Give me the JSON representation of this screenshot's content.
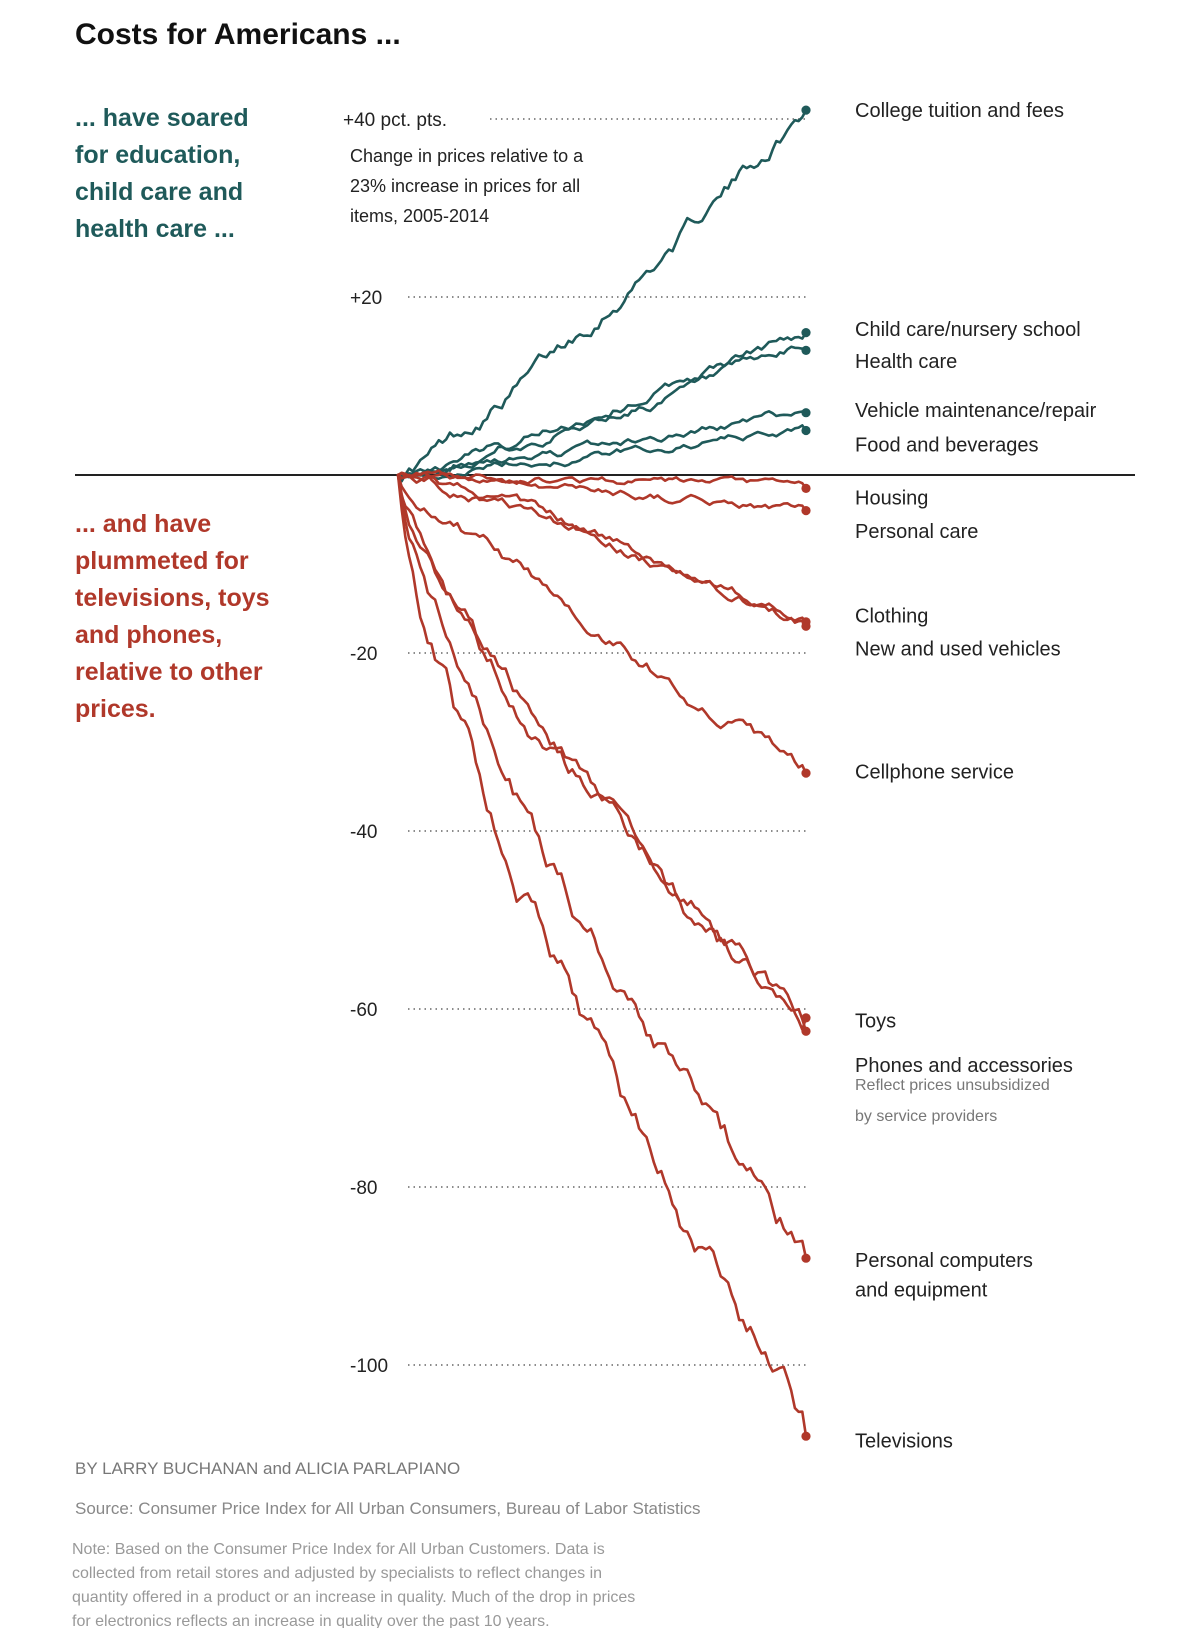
{
  "title": "Costs for Americans ...",
  "headline_up": [
    "... have soared",
    "for education,",
    "child care and",
    "health care ..."
  ],
  "headline_down": [
    "... and have",
    "plummeted for",
    "televisions, toys",
    "and phones,",
    "relative to other",
    "prices."
  ],
  "credit": "BY LARRY BUCHANAN and ALICIA PARLAPIANO",
  "source": "Source: Consumer Price Index for All Urban Consumers, Bureau of Labor Statistics",
  "note": [
    "Note: Based on the Consumer Price Index for All Urban Customers. Data is",
    "collected from retail stores and adjusted by specialists to reflect changes in",
    "quantity offered in a product or an increase in quality. Much of the drop in prices",
    "for electronics reflects an increase in quality over the past 10 years."
  ],
  "colors": {
    "up": "#1f5a5a",
    "down": "#b0382a"
  },
  "chart_data": {
    "type": "line",
    "title": "Costs for Americans ...",
    "subtitle": [
      "Change in prices relative to a",
      "23% increase in prices for all",
      "items, 2005-2014"
    ],
    "x": [
      2005,
      2014
    ],
    "xlabel": "",
    "ylabel": "pct. pts.",
    "ylim": [
      -108,
      41
    ],
    "y_ticks": [
      {
        "value": 40,
        "label": "+40 pct. pts."
      },
      {
        "value": 20,
        "label": "+20"
      },
      {
        "value": -20,
        "label": "-20"
      },
      {
        "value": -40,
        "label": "-40"
      },
      {
        "value": -60,
        "label": "-60"
      },
      {
        "value": -80,
        "label": "-80"
      },
      {
        "value": -100,
        "label": "-100"
      }
    ],
    "grid": true,
    "series": [
      {
        "name": "College tuition and fees",
        "end_value": 41,
        "group": "up"
      },
      {
        "name": "Child care/nursery school",
        "end_value": 16,
        "group": "up"
      },
      {
        "name": "Health care",
        "end_value": 14,
        "group": "up"
      },
      {
        "name": "Vehicle maintenance/repair",
        "end_value": 7,
        "group": "up"
      },
      {
        "name": "Food and beverages",
        "end_value": 5,
        "group": "up"
      },
      {
        "name": "Housing",
        "end_value": -1.5,
        "group": "down"
      },
      {
        "name": "Personal care",
        "end_value": -4,
        "group": "down"
      },
      {
        "name": "Clothing",
        "end_value": -16.5,
        "group": "down"
      },
      {
        "name": "New and used vehicles",
        "end_value": -17,
        "group": "down"
      },
      {
        "name": "Cellphone service",
        "end_value": -33.5,
        "group": "down"
      },
      {
        "name": "Toys",
        "end_value": -61,
        "group": "down"
      },
      {
        "name": "Phones and accessories",
        "end_value": -62.5,
        "group": "down",
        "note": [
          "Reflect prices unsubsidized",
          "by service providers"
        ]
      },
      {
        "name": "Personal computers and equipment",
        "end_value": -88,
        "group": "down"
      },
      {
        "name": "Televisions",
        "end_value": -108,
        "group": "down"
      }
    ],
    "direct_labels": [
      {
        "text": "College tuition and fees",
        "value": 41
      },
      {
        "text": "Child care/nursery school",
        "value": 16.4
      },
      {
        "text": "Health care",
        "value": 12.8
      },
      {
        "text": "Vehicle maintenance/repair",
        "value": 7.3
      },
      {
        "text": "Food and beverages",
        "value": 3.4
      },
      {
        "text": "Housing",
        "value": -2.5
      },
      {
        "text": "Personal care",
        "value": -6.3
      },
      {
        "text": "Clothing",
        "value": -15.8
      },
      {
        "text": "New and used vehicles",
        "value": -19.5
      },
      {
        "text": "Cellphone service",
        "value": -33.3
      },
      {
        "text": "Toys",
        "value": -61.3
      },
      {
        "text": "Phones and accessories",
        "value": -66.3
      },
      {
        "text": "Personal computers",
        "value": -88.2
      },
      {
        "text": "and equipment",
        "value": -91.5
      },
      {
        "text": "Televisions",
        "value": -108.5
      }
    ]
  }
}
